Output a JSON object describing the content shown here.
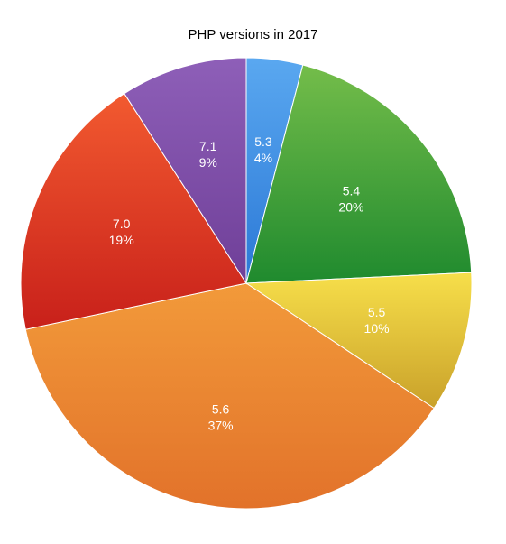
{
  "chart_data": {
    "type": "pie",
    "title": "PHP versions in 2017",
    "slices": [
      {
        "label": "5.3",
        "percent_label": "4%",
        "value": 4,
        "color_top": "#5aa8f0",
        "color_bottom": "#2b78d6"
      },
      {
        "label": "5.4",
        "percent_label": "20%",
        "value": 20,
        "color_top": "#74bd4a",
        "color_bottom": "#1f8a2e"
      },
      {
        "label": "5.5",
        "percent_label": "10%",
        "value": 10,
        "color_top": "#f7df4a",
        "color_bottom": "#c9a12a"
      },
      {
        "label": "5.6",
        "percent_label": "37%",
        "value": 37,
        "color_top": "#f29a3a",
        "color_bottom": "#e2722a"
      },
      {
        "label": "7.0",
        "percent_label": "19%",
        "value": 19,
        "color_top": "#f25a30",
        "color_bottom": "#c8201a"
      },
      {
        "label": "7.1",
        "percent_label": "9%",
        "value": 9,
        "color_top": "#8e5fb8",
        "color_bottom": "#6f3f98"
      }
    ]
  }
}
